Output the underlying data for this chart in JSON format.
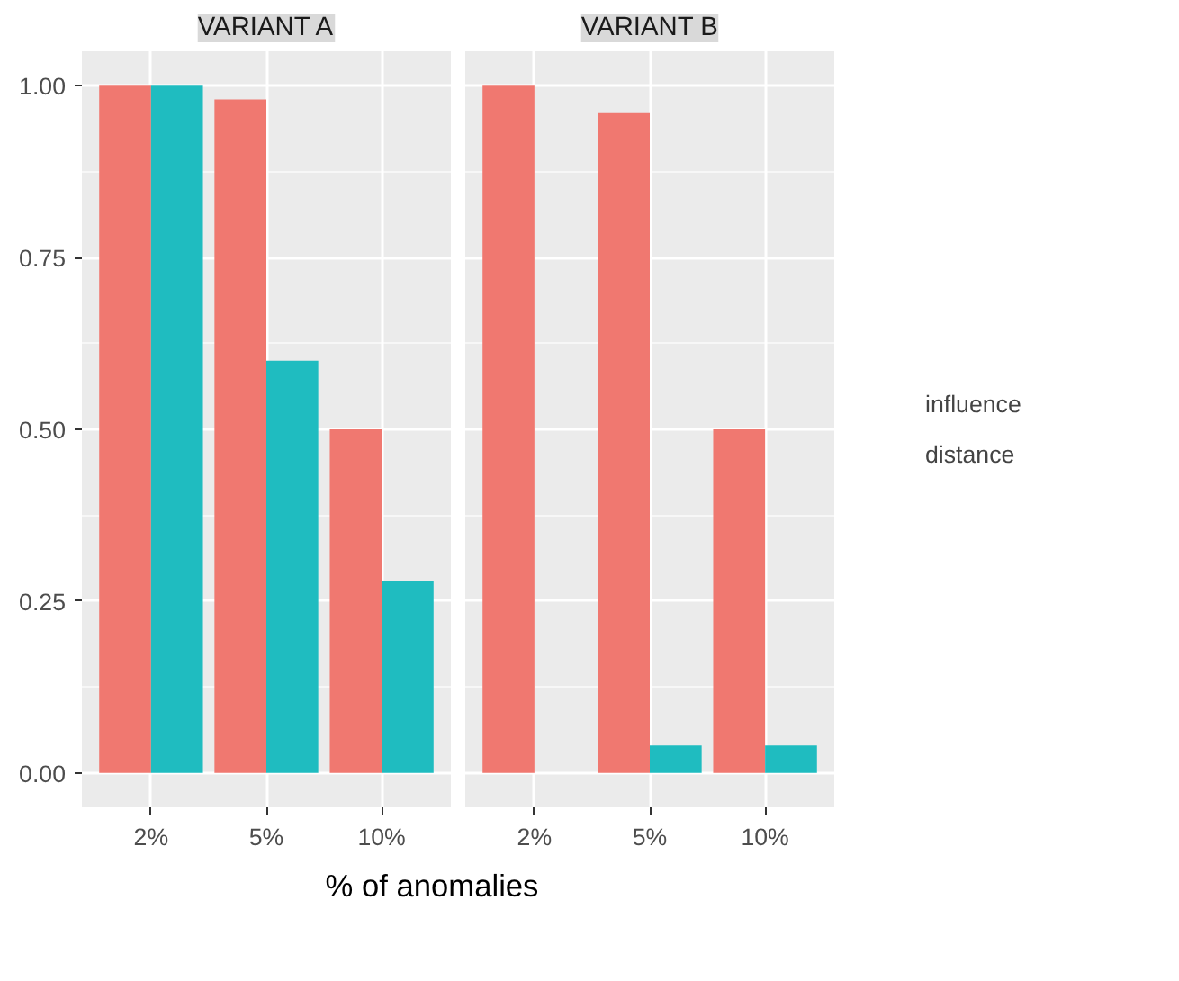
{
  "chart_data": [
    {
      "type": "bar",
      "title": "VARIANT A",
      "xlabel": "% of anomalies",
      "categories": [
        "2%",
        "5%",
        "10%"
      ],
      "series": [
        {
          "color": "#f07870",
          "values": [
            1.0,
            0.98,
            0.5
          ]
        },
        {
          "color": "#1fbcc0",
          "values": [
            1.0,
            0.6,
            0.28
          ]
        }
      ],
      "ylim": [
        -0.05,
        1.05
      ],
      "yticks": [
        {
          "value": 0,
          "label": "0.00"
        },
        {
          "value": 0.25,
          "label": "0.25"
        },
        {
          "value": 0.5,
          "label": "0.50"
        },
        {
          "value": 0.75,
          "label": "0.75"
        },
        {
          "value": 1,
          "label": "1.00"
        }
      ],
      "grid": true
    },
    {
      "type": "bar",
      "title": "VARIANT B",
      "categories": [
        "2%",
        "5%",
        "10%"
      ],
      "series": [
        {
          "name": "influence",
          "color": "#f07870",
          "values": [
            1.0,
            0.96,
            0.5
          ]
        },
        {
          "name": "distance",
          "color": "#1fbcc0",
          "values": [
            0,
            0.04,
            0.04
          ]
        }
      ],
      "ylim": [
        -0.05,
        1.05
      ],
      "yticks": [
        0,
        0.25,
        0.5,
        0.75,
        1
      ],
      "grid": true,
      "tick_labels": "x",
      "legend": "right"
    }
  ]
}
